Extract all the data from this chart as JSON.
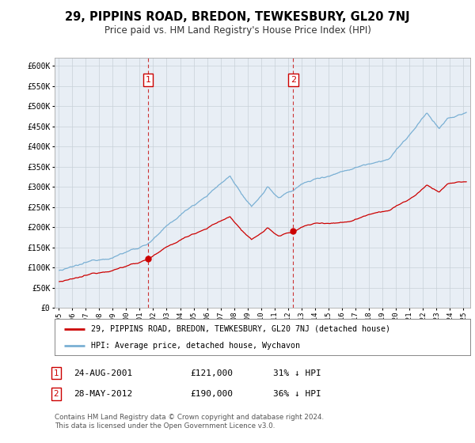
{
  "title": "29, PIPPINS ROAD, BREDON, TEWKESBURY, GL20 7NJ",
  "subtitle": "Price paid vs. HM Land Registry's House Price Index (HPI)",
  "legend_line1": "29, PIPPINS ROAD, BREDON, TEWKESBURY, GL20 7NJ (detached house)",
  "legend_line2": "HPI: Average price, detached house, Wychavon",
  "sale1_date_str": "24-AUG-2001",
  "sale1_price_str": "£121,000",
  "sale1_hpi_str": "31% ↓ HPI",
  "sale1_year": 2001,
  "sale1_month": 8,
  "sale1_price": 121000,
  "sale2_date_str": "28-MAY-2012",
  "sale2_price_str": "£190,000",
  "sale2_hpi_str": "36% ↓ HPI",
  "sale2_year": 2012,
  "sale2_month": 5,
  "sale2_price": 190000,
  "footnote1": "Contains HM Land Registry data © Crown copyright and database right 2024.",
  "footnote2": "This data is licensed under the Open Government Licence v3.0.",
  "red_color": "#cc0000",
  "blue_color": "#7ab0d4",
  "plot_bg_color": "#e8eef5",
  "grid_color": "#c8d0d8",
  "vline_color": "#cc3333",
  "ylim_max": 620000,
  "ylim_min": 0,
  "xlim_min": 1994.7,
  "xlim_max": 2025.5
}
